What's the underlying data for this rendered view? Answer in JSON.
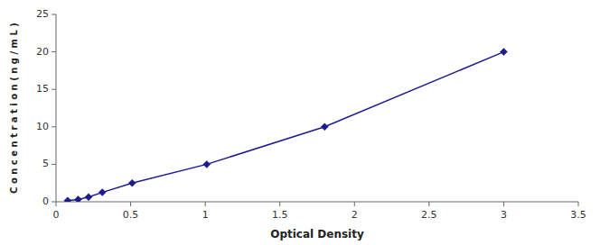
{
  "chart_data": {
    "type": "line",
    "x": [
      0.078,
      0.148,
      0.218,
      0.31,
      0.51,
      1.01,
      1.8,
      3.0
    ],
    "values": [
      0.156,
      0.312,
      0.625,
      1.25,
      2.5,
      5.0,
      10.0,
      20.0
    ],
    "color": "#1C1C8C",
    "marker": "diamond",
    "xlabel": "Optical Density",
    "ylabel": "C o n c e n t r a t i o n ( n g / m L )",
    "xlim": [
      0,
      3.5
    ],
    "ylim": [
      0,
      25
    ],
    "xticks": [
      0,
      0.5,
      1,
      1.5,
      2,
      2.5,
      3,
      3.5
    ],
    "yticks": [
      0,
      5,
      10,
      15,
      20,
      25
    ]
  }
}
